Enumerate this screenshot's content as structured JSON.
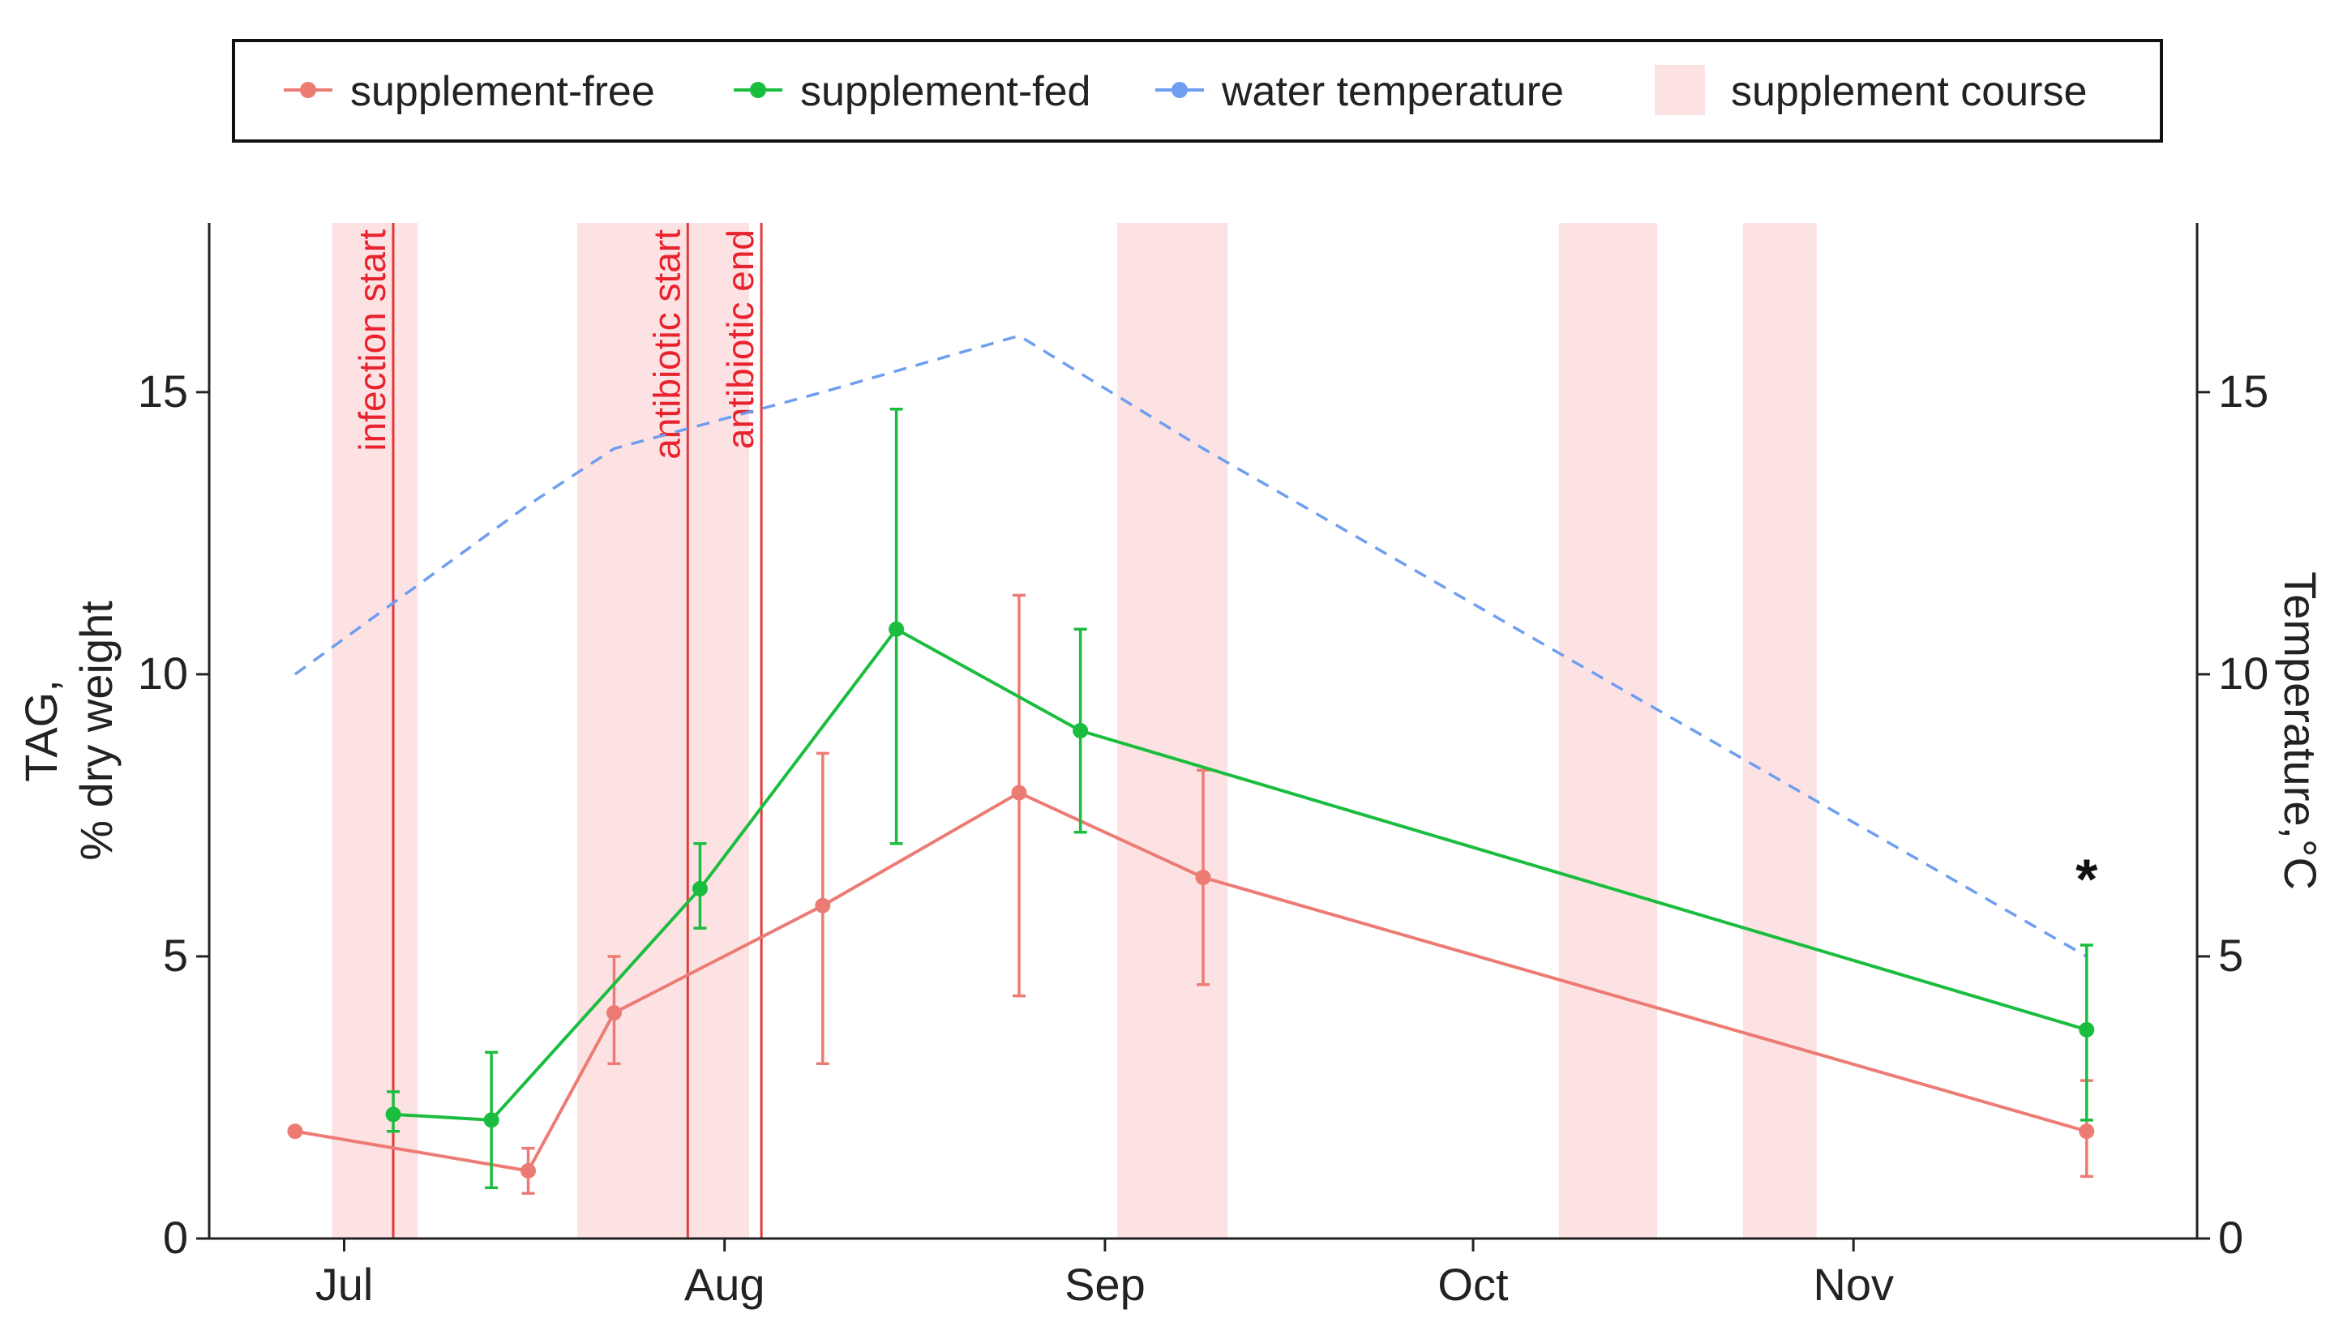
{
  "chart_data": {
    "type": "line",
    "x_unit": "day of year",
    "x_range": [
      171,
      333
    ],
    "x_ticks": [
      {
        "label": "Jul",
        "x": 182
      },
      {
        "label": "Aug",
        "x": 213
      },
      {
        "label": "Sep",
        "x": 244
      },
      {
        "label": "Oct",
        "x": 274
      },
      {
        "label": "Nov",
        "x": 305
      }
    ],
    "left_axis": {
      "label_line1": "TAG,",
      "label_line2": "% dry weight",
      "range": [
        0,
        18
      ],
      "ticks": [
        0,
        5,
        10,
        15
      ]
    },
    "right_axis": {
      "label": "Temperature,°C",
      "range": [
        0,
        18
      ],
      "ticks": [
        0,
        5,
        10,
        15
      ]
    },
    "legend": {
      "position": "top",
      "items": [
        {
          "key": "free",
          "label": "supplement-free",
          "kind": "point-line"
        },
        {
          "key": "fed",
          "label": "supplement-fed",
          "kind": "point-line"
        },
        {
          "key": "temp",
          "label": "water temperature",
          "kind": "point-line"
        },
        {
          "key": "course",
          "label": "supplement course",
          "kind": "fill"
        }
      ]
    },
    "colors": {
      "free": "#ec7c73",
      "fed": "#1bbd3f",
      "temp": "#6e9ef0",
      "course": "#fde2e4",
      "event": "#e23a3a",
      "event_text": "#e8232d",
      "axis": "#222222"
    },
    "supplement_courses": [
      [
        181,
        188
      ],
      [
        201,
        215
      ],
      [
        245,
        254
      ],
      [
        281,
        289
      ],
      [
        296,
        302
      ]
    ],
    "events": [
      {
        "label": "infection start",
        "x": 186
      },
      {
        "label": "antibiotic start",
        "x": 210
      },
      {
        "label": "antibiotic end",
        "x": 216
      }
    ],
    "series": [
      {
        "key": "free",
        "name": "supplement-free",
        "points": [
          {
            "x": 178,
            "y": 1.9
          },
          {
            "x": 197,
            "y": 1.2,
            "err": [
              0.8,
              1.6
            ]
          },
          {
            "x": 204,
            "y": 4.0,
            "err": [
              3.1,
              5.0
            ]
          },
          {
            "x": 221,
            "y": 5.9,
            "err": [
              3.1,
              8.6
            ]
          },
          {
            "x": 237,
            "y": 7.9,
            "err": [
              4.3,
              11.4
            ]
          },
          {
            "x": 252,
            "y": 6.4,
            "err": [
              4.5,
              8.3
            ]
          },
          {
            "x": 324,
            "y": 1.9,
            "err": [
              1.1,
              2.8
            ]
          }
        ]
      },
      {
        "key": "fed",
        "name": "supplement-fed",
        "points": [
          {
            "x": 186,
            "y": 2.2,
            "err": [
              1.9,
              2.6
            ]
          },
          {
            "x": 194,
            "y": 2.1,
            "err": [
              0.9,
              3.3
            ]
          },
          {
            "x": 211,
            "y": 6.2,
            "err": [
              5.5,
              7.0
            ]
          },
          {
            "x": 227,
            "y": 10.8,
            "err": [
              7.0,
              14.7
            ]
          },
          {
            "x": 242,
            "y": 9.0,
            "err": [
              7.2,
              10.8
            ]
          },
          {
            "x": 324,
            "y": 3.7,
            "err": [
              2.1,
              5.2
            ]
          }
        ]
      },
      {
        "key": "temp",
        "name": "water temperature",
        "axis": "right",
        "style": "dashed",
        "points": [
          {
            "x": 178,
            "y": 10.0
          },
          {
            "x": 197,
            "y": 13.0
          },
          {
            "x": 204,
            "y": 14.0
          },
          {
            "x": 221,
            "y": 15.0
          },
          {
            "x": 237,
            "y": 16.0
          },
          {
            "x": 252,
            "y": 14.0
          },
          {
            "x": 324,
            "y": 5.0
          }
        ]
      }
    ],
    "annotations": [
      {
        "text": "*",
        "x": 324,
        "y": 6.6
      }
    ]
  }
}
